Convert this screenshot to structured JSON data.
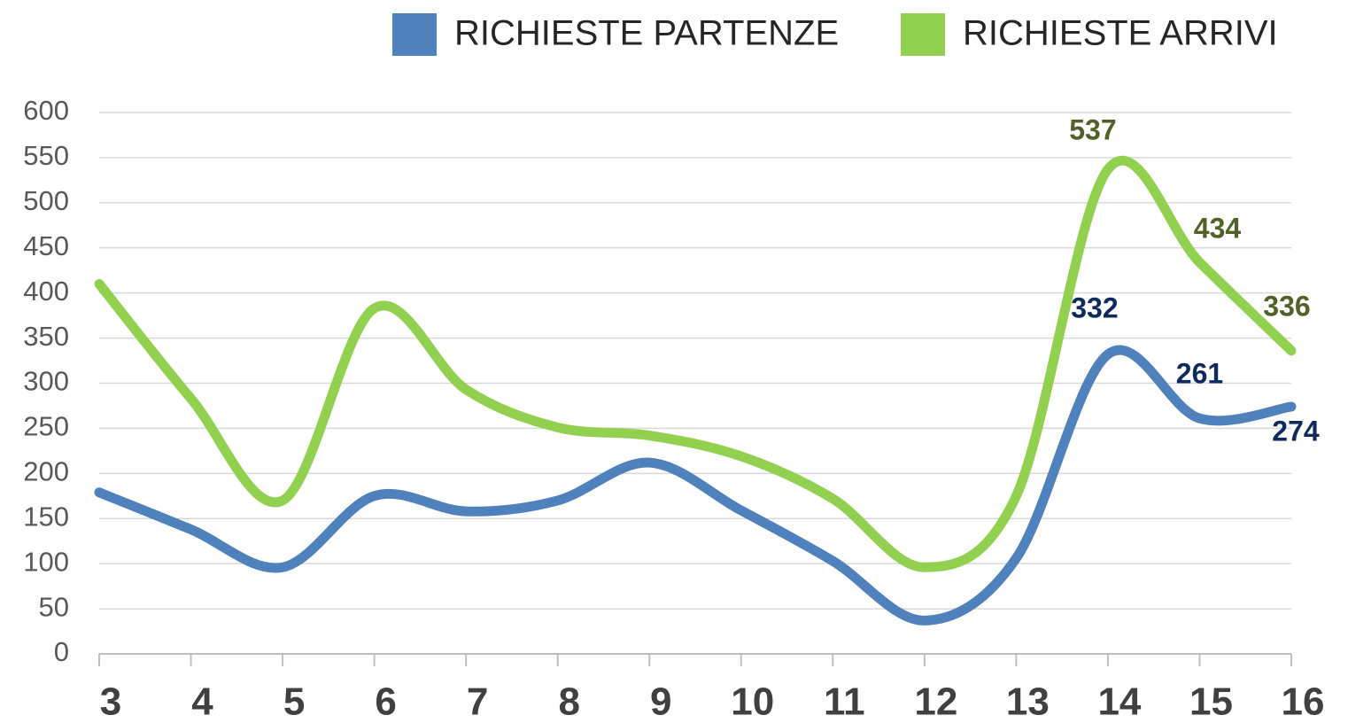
{
  "chart_data": {
    "type": "line",
    "x": [
      3,
      4,
      5,
      6,
      7,
      8,
      9,
      10,
      11,
      12,
      13,
      14,
      15,
      16
    ],
    "series": [
      {
        "name": "RICHIESTE PARTENZE",
        "color": "#4f81bd",
        "values": [
          179,
          138,
          96,
          175,
          158,
          170,
          212,
          159,
          103,
          37,
          106,
          332,
          261,
          274
        ],
        "value_labels": [
          null,
          null,
          null,
          null,
          null,
          null,
          null,
          null,
          null,
          null,
          null,
          "332",
          "261",
          "274"
        ],
        "label_color": "#0f2a5c"
      },
      {
        "name": "RICHIESTE ARRIVI",
        "color": "#92d050",
        "values": [
          410,
          283,
          170,
          383,
          293,
          251,
          242,
          219,
          172,
          96,
          175,
          537,
          434,
          336
        ],
        "value_labels": [
          null,
          null,
          null,
          null,
          null,
          null,
          null,
          null,
          null,
          null,
          null,
          "537",
          "434",
          "336"
        ],
        "label_color": "#4f6228"
      }
    ],
    "xlim": [
      3,
      16
    ],
    "xticks": [
      3,
      4,
      5,
      6,
      7,
      8,
      9,
      10,
      11,
      12,
      13,
      14,
      15,
      16
    ],
    "ylim": [
      0,
      600
    ],
    "yticks": [
      0,
      50,
      100,
      150,
      200,
      250,
      300,
      350,
      400,
      450,
      500,
      550,
      600
    ],
    "grid": true,
    "smooth": true,
    "legend": "top"
  }
}
